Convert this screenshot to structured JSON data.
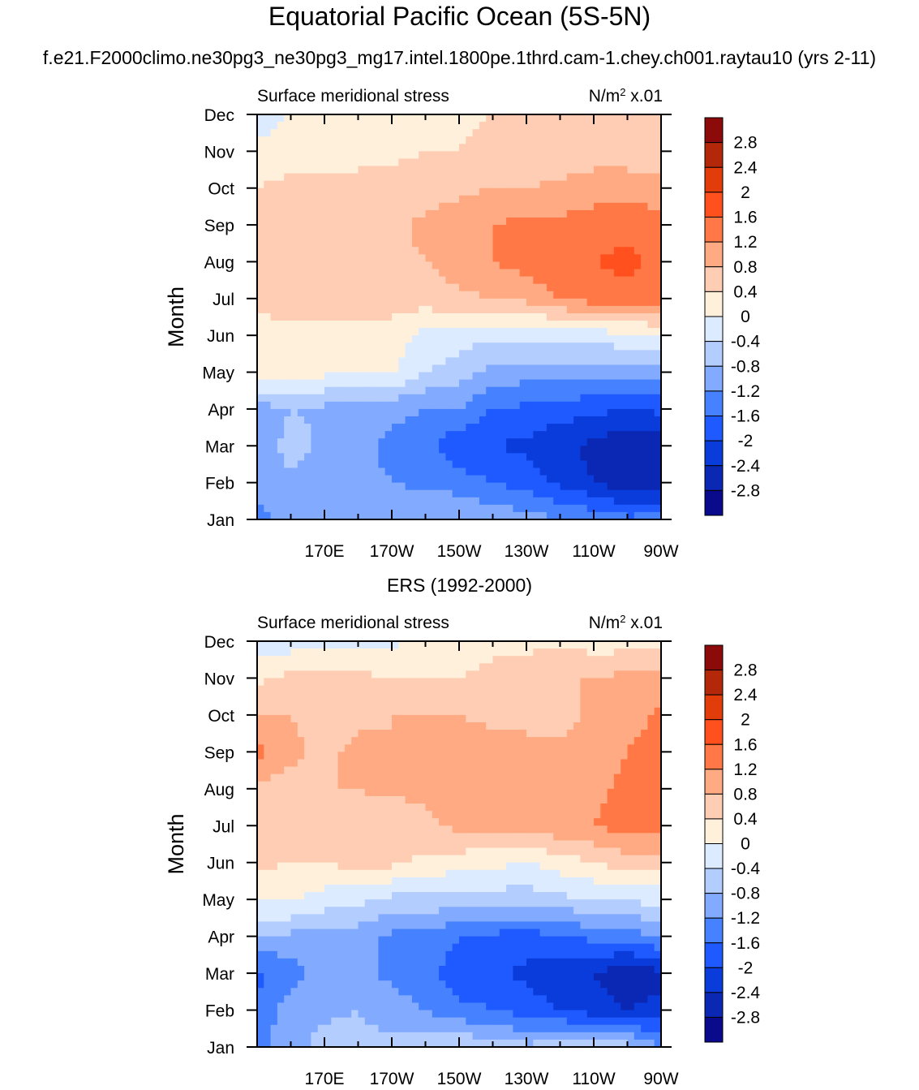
{
  "title": "Equatorial Pacific Ocean (5S-5N)",
  "subtitle": "f.e21.F2000climo.ne30pg3_ne30pg3_mg17.intel.1800pe.1thrd.cam-1.chey.ch001.raytau10 (yrs 2-11)",
  "colors": {
    "levels_palette": [
      "#0a0a8c",
      "#0a28b4",
      "#0a3cdc",
      "#1e5aff",
      "#4682ff",
      "#82aaff",
      "#b4cdff",
      "#dcebff",
      "#fff0dc",
      "#ffcdb4",
      "#ffaa82",
      "#ff7846",
      "#ff501e",
      "#e13c0a",
      "#b4280a",
      "#8c0a0a"
    ]
  },
  "chart_data": [
    {
      "type": "heatmap",
      "panel_title": "",
      "left_label": "Surface meridional stress",
      "right_label": "N/m",
      "right_label_sup": "2",
      "right_label_suffix": " x.01",
      "ylabel": "Month",
      "x_ticks": [
        "170E",
        "170W",
        "150W",
        "130W",
        "110W",
        "90W"
      ],
      "y_ticks": [
        "Jan",
        "Feb",
        "Mar",
        "Apr",
        "May",
        "Jun",
        "Jul",
        "Aug",
        "Sep",
        "Oct",
        "Nov",
        "Dec"
      ],
      "colorbar_labels": [
        "2.8",
        "2.4",
        "2",
        "1.6",
        "1.2",
        "0.8",
        "0.4",
        "0",
        "-0.4",
        "-0.8",
        "-1.2",
        "-1.6",
        "-2",
        "-2.4",
        "-2.8"
      ],
      "x_lon": [
        150,
        160,
        170,
        180,
        190,
        200,
        210,
        220,
        230,
        240,
        250,
        260,
        270
      ],
      "months": [
        "Jan",
        "Feb",
        "Mar",
        "Apr",
        "May",
        "Jun",
        "Jul",
        "Aug",
        "Sep",
        "Oct",
        "Nov",
        "Dec"
      ],
      "values": [
        [
          -1.3,
          -1.1,
          -1.0,
          -0.9,
          -0.9,
          -0.8,
          -0.8,
          -0.9,
          -1.0,
          -1.2,
          -1.3,
          -1.5,
          -1.4
        ],
        [
          -1.1,
          -0.9,
          -1.0,
          -1.1,
          -1.2,
          -1.3,
          -1.4,
          -1.6,
          -1.8,
          -2.1,
          -2.4,
          -2.7,
          -2.6
        ],
        [
          -1.2,
          -0.6,
          -0.9,
          -1.1,
          -1.3,
          -1.5,
          -1.9,
          -2.0,
          -2.1,
          -2.3,
          -2.5,
          -2.8,
          -2.7
        ],
        [
          -1.0,
          -0.8,
          -0.9,
          -1.0,
          -1.1,
          -1.2,
          -1.2,
          -1.6,
          -1.7,
          -1.8,
          -1.9,
          -2.0,
          -1.9
        ],
        [
          0.2,
          0.2,
          0.1,
          0.1,
          0.1,
          -0.4,
          -0.6,
          -0.9,
          -1.0,
          -1.0,
          -1.0,
          -1.0,
          -0.9
        ],
        [
          0.2,
          0.3,
          0.3,
          0.2,
          0.2,
          -0.1,
          -0.2,
          -0.3,
          -0.3,
          -0.3,
          -0.2,
          -0.1,
          0.0
        ],
        [
          0.5,
          0.6,
          0.6,
          0.6,
          0.6,
          0.6,
          0.7,
          0.8,
          0.9,
          1.2,
          1.4,
          1.5,
          1.4
        ],
        [
          0.5,
          0.6,
          0.6,
          0.6,
          0.7,
          0.8,
          1.0,
          1.2,
          1.4,
          1.5,
          1.6,
          1.7,
          1.5
        ],
        [
          0.5,
          0.6,
          0.6,
          0.7,
          0.7,
          0.9,
          1.0,
          1.2,
          1.3,
          1.3,
          1.4,
          1.5,
          1.4
        ],
        [
          0.4,
          0.5,
          0.5,
          0.5,
          0.6,
          0.6,
          0.7,
          0.8,
          0.8,
          0.9,
          1.0,
          1.0,
          0.9
        ],
        [
          0.1,
          0.2,
          0.2,
          0.3,
          0.3,
          0.4,
          0.4,
          0.5,
          0.5,
          0.5,
          0.6,
          0.6,
          0.6
        ],
        [
          -0.2,
          0.0,
          0.1,
          0.1,
          0.2,
          0.2,
          0.3,
          0.4,
          0.4,
          0.5,
          0.5,
          0.6,
          0.6
        ]
      ]
    },
    {
      "type": "heatmap",
      "panel_title": "ERS (1992-2000)",
      "left_label": "Surface meridional stress",
      "right_label": "N/m",
      "right_label_sup": "2",
      "right_label_suffix": " x.01",
      "ylabel": "Month",
      "x_ticks": [
        "170E",
        "170W",
        "150W",
        "130W",
        "110W",
        "90W"
      ],
      "y_ticks": [
        "Jan",
        "Feb",
        "Mar",
        "Apr",
        "May",
        "Jun",
        "Jul",
        "Aug",
        "Sep",
        "Oct",
        "Nov",
        "Dec"
      ],
      "colorbar_labels": [
        "2.8",
        "2.4",
        "2",
        "1.6",
        "1.2",
        "0.8",
        "0.4",
        "0",
        "-0.4",
        "-0.8",
        "-1.2",
        "-1.6",
        "-2",
        "-2.4",
        "-2.8"
      ],
      "x_lon": [
        150,
        160,
        170,
        180,
        190,
        200,
        210,
        220,
        230,
        240,
        250,
        260,
        270
      ],
      "months": [
        "Jan",
        "Feb",
        "Mar",
        "Apr",
        "May",
        "Jun",
        "Jul",
        "Aug",
        "Sep",
        "Oct",
        "Nov",
        "Dec"
      ],
      "values": [
        [
          -1.3,
          -1.0,
          -0.6,
          -0.7,
          -0.7,
          -0.5,
          -0.4,
          -0.6,
          -0.7,
          -0.6,
          -0.5,
          -0.6,
          -1.2
        ],
        [
          -1.5,
          -1.0,
          -0.9,
          -0.8,
          -1.0,
          -1.2,
          -1.5,
          -1.6,
          -1.8,
          -2.0,
          -2.2,
          -2.4,
          -2.3
        ],
        [
          -1.7,
          -1.4,
          -1.0,
          -1.1,
          -1.3,
          -1.5,
          -1.8,
          -1.9,
          -2.1,
          -2.3,
          -2.4,
          -2.7,
          -2.5
        ],
        [
          -0.9,
          -0.9,
          -0.9,
          -1.0,
          -1.3,
          -1.3,
          -1.6,
          -1.7,
          -1.8,
          -1.6,
          -1.5,
          -1.4,
          -1.1
        ],
        [
          0.1,
          0.1,
          -0.2,
          -0.3,
          -0.5,
          -0.5,
          -0.6,
          -0.6,
          -0.6,
          -0.5,
          -0.4,
          -0.3,
          -0.3
        ],
        [
          0.5,
          0.4,
          0.4,
          0.6,
          0.5,
          0.3,
          0.2,
          0.1,
          0.0,
          0.2,
          0.4,
          0.6,
          0.7
        ],
        [
          0.7,
          0.5,
          0.6,
          0.7,
          0.5,
          0.7,
          0.9,
          1.0,
          1.0,
          1.1,
          1.2,
          1.4,
          1.3
        ],
        [
          0.7,
          0.6,
          0.8,
          0.8,
          0.9,
          0.9,
          0.9,
          0.9,
          1.0,
          1.0,
          1.1,
          1.3,
          1.5
        ],
        [
          1.3,
          0.9,
          0.7,
          0.9,
          0.8,
          0.8,
          0.9,
          1.0,
          0.9,
          0.9,
          1.0,
          1.2,
          1.4
        ],
        [
          0.8,
          0.8,
          0.6,
          0.7,
          0.8,
          0.8,
          0.8,
          0.7,
          0.7,
          0.6,
          0.9,
          1.0,
          1.3
        ],
        [
          0.3,
          0.5,
          0.6,
          0.5,
          0.4,
          0.4,
          0.4,
          0.5,
          0.6,
          0.8,
          0.8,
          0.9,
          0.9
        ],
        [
          -0.3,
          -0.2,
          -0.1,
          -0.2,
          -0.1,
          0.1,
          0.2,
          0.3,
          0.3,
          0.3,
          0.2,
          0.2,
          0.2
        ]
      ]
    }
  ]
}
